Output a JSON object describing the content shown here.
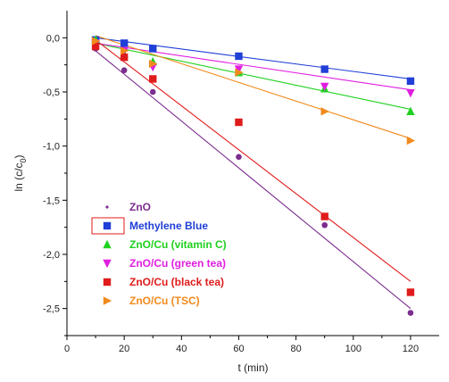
{
  "chart_data": {
    "type": "scatter",
    "title": "",
    "xlabel": "t (min)",
    "ylabel_main": "ln (c/c",
    "ylabel_sub": "0",
    "ylabel_end": ")",
    "xlim": [
      0,
      130
    ],
    "ylim": [
      -2.75,
      0.25
    ],
    "xticks": [
      0,
      20,
      40,
      60,
      80,
      100,
      120
    ],
    "xtick_labels": [
      "0",
      "20",
      "40",
      "60",
      "80",
      "100",
      "120"
    ],
    "yticks": [
      0,
      -0.5,
      -1,
      -1.5,
      -2,
      -2.5
    ],
    "ytick_labels": [
      "0,0",
      "-0,5",
      "-1,0",
      "-1,5",
      "-2,0",
      "-2,5"
    ],
    "grid": false,
    "legend_position": "bottom-left",
    "series": [
      {
        "name": "ZnO",
        "color": "#7b2d8e",
        "marker": "dot",
        "x": [
          10,
          20,
          30,
          60,
          90,
          120
        ],
        "y": [
          -0.1,
          -0.3,
          -0.5,
          -1.1,
          -1.73,
          -2.54
        ],
        "fit": [
          [
            10,
            -0.12
          ],
          [
            120,
            -2.5
          ]
        ]
      },
      {
        "name": "Methylene Blue",
        "color": "#1f3fd6",
        "marker": "square",
        "x": [
          10,
          20,
          30,
          60,
          90,
          120
        ],
        "y": [
          -0.02,
          -0.05,
          -0.1,
          -0.17,
          -0.29,
          -0.4
        ],
        "fit": [
          [
            10,
            0.0
          ],
          [
            120,
            -0.38
          ]
        ]
      },
      {
        "name": "ZnO/Cu (vitamin C)",
        "color": "#1fd11f",
        "marker": "triangle-up",
        "x": [
          10,
          20,
          30,
          60,
          90,
          120
        ],
        "y": [
          -0.02,
          -0.15,
          -0.22,
          -0.32,
          -0.47,
          -0.68
        ],
        "fit": [
          [
            10,
            -0.05
          ],
          [
            120,
            -0.66
          ]
        ]
      },
      {
        "name": "ZnO/Cu (green tea)",
        "color": "#e01ee0",
        "marker": "triangle-down",
        "x": [
          10,
          20,
          30,
          60,
          90,
          120
        ],
        "y": [
          -0.05,
          -0.12,
          -0.27,
          -0.29,
          -0.45,
          -0.51
        ],
        "fit": [
          [
            10,
            -0.05
          ],
          [
            120,
            -0.48
          ]
        ]
      },
      {
        "name": "ZnO/Cu (black tea)",
        "color": "#e01b1b",
        "marker": "square",
        "x": [
          10,
          20,
          30,
          60,
          90,
          120
        ],
        "y": [
          -0.08,
          -0.18,
          -0.38,
          -0.78,
          -1.65,
          -2.35
        ],
        "fit": [
          [
            10,
            -0.02
          ],
          [
            120,
            -2.25
          ]
        ]
      },
      {
        "name": "ZnO/Cu (TSC)",
        "color": "#f08a1c",
        "marker": "triangle-right",
        "x": [
          10,
          20,
          30,
          60,
          90,
          120
        ],
        "y": [
          -0.03,
          -0.12,
          -0.24,
          -0.32,
          -0.68,
          -0.95
        ],
        "fit": [
          [
            10,
            0.02
          ],
          [
            120,
            -0.93
          ]
        ]
      }
    ],
    "legend_highlight_color": "#e01b1b"
  }
}
